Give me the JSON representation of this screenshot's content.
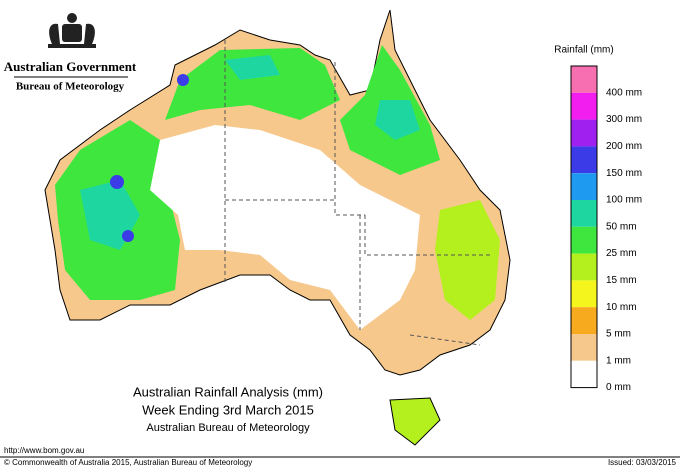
{
  "header": {
    "government": "Australian Government",
    "bureau": "Bureau of Meteorology"
  },
  "legend": {
    "title": "Rainfall (mm)",
    "items": [
      {
        "label": "400 mm",
        "color": "#f76fb0"
      },
      {
        "label": "300 mm",
        "color": "#f21ef0"
      },
      {
        "label": "200 mm",
        "color": "#a020f0"
      },
      {
        "label": "150 mm",
        "color": "#3b3be8"
      },
      {
        "label": "100 mm",
        "color": "#1e9bf0"
      },
      {
        "label": "50 mm",
        "color": "#1ed7a0"
      },
      {
        "label": "25 mm",
        "color": "#3ee63e"
      },
      {
        "label": "15 mm",
        "color": "#b4f01e"
      },
      {
        "label": "10 mm",
        "color": "#f5f51e"
      },
      {
        "label": "5 mm",
        "color": "#f7aa1e"
      },
      {
        "label": "1 mm",
        "color": "#f7c88c"
      },
      {
        "label": "0 mm",
        "color": "#ffffff"
      }
    ]
  },
  "caption": {
    "title": "Australian Rainfall Analysis (mm)",
    "period": "Week Ending 3rd March 2015",
    "source": "Australian Bureau of Meteorology"
  },
  "footer": {
    "url": "http://www.bom.gov.au",
    "copyright": "© Commonwealth of Australia 2015, Australian Bureau of Meteorology",
    "issued": "Issued: 03/03/2015"
  }
}
